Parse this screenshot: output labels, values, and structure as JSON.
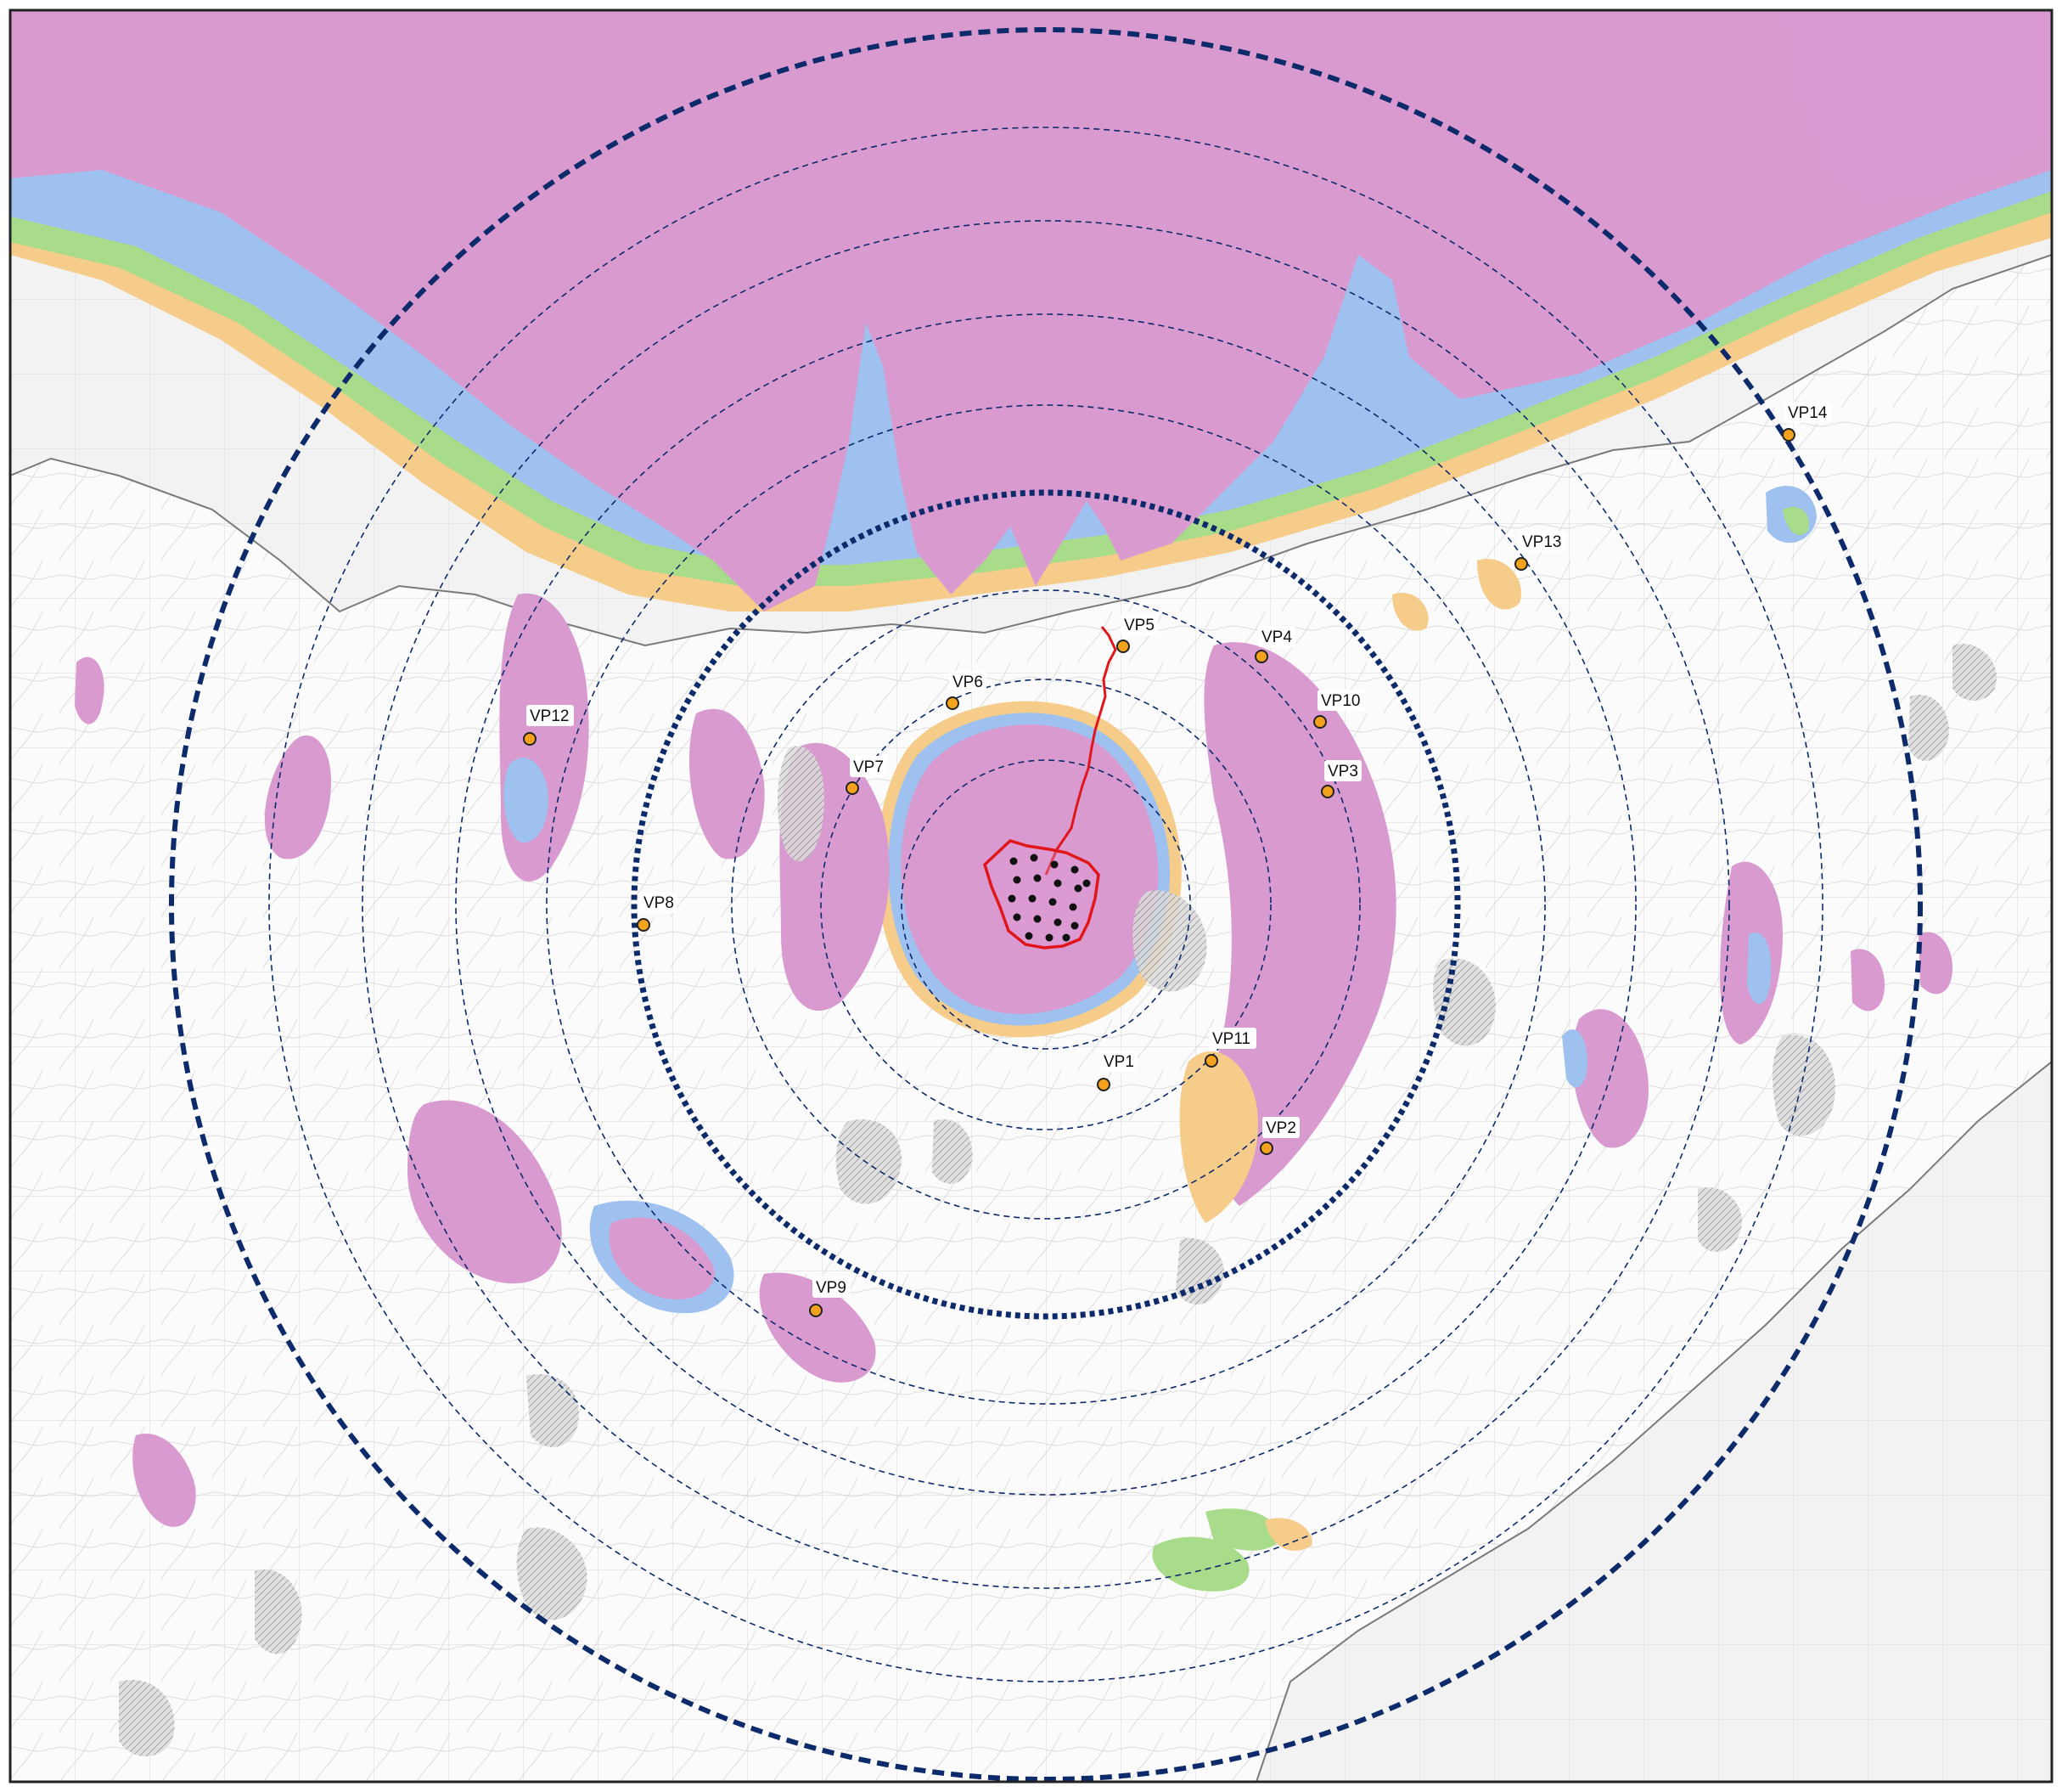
{
  "map": {
    "colors": {
      "sea": "#f2f2f2",
      "land": "#fbfbfb",
      "visibility_high": "#d99ad0",
      "visibility_mid_high": "#9ec1ef",
      "visibility_mid_low": "#a8dc8a",
      "visibility_low": "#f6cc8a",
      "woodland_hatch": "#b8b8b8",
      "radius_rings": "#0d2a6b",
      "site_boundary": "#e0161b",
      "turbine_marker": "#111111",
      "viewpoint_fill": "#f2a21d"
    },
    "viewpoints": [
      {
        "id": "vp1",
        "label": "VP1"
      },
      {
        "id": "vp2",
        "label": "VP2"
      },
      {
        "id": "vp3",
        "label": "VP3"
      },
      {
        "id": "vp4",
        "label": "VP4"
      },
      {
        "id": "vp5",
        "label": "VP5"
      },
      {
        "id": "vp6",
        "label": "VP6"
      },
      {
        "id": "vp7",
        "label": "VP7"
      },
      {
        "id": "vp8",
        "label": "VP8"
      },
      {
        "id": "vp9",
        "label": "VP9"
      },
      {
        "id": "vp10",
        "label": "VP10"
      },
      {
        "id": "vp11",
        "label": "VP11"
      },
      {
        "id": "vp12",
        "label": "VP12"
      },
      {
        "id": "vp13",
        "label": "VP13"
      },
      {
        "id": "vp14",
        "label": "VP14"
      }
    ]
  }
}
